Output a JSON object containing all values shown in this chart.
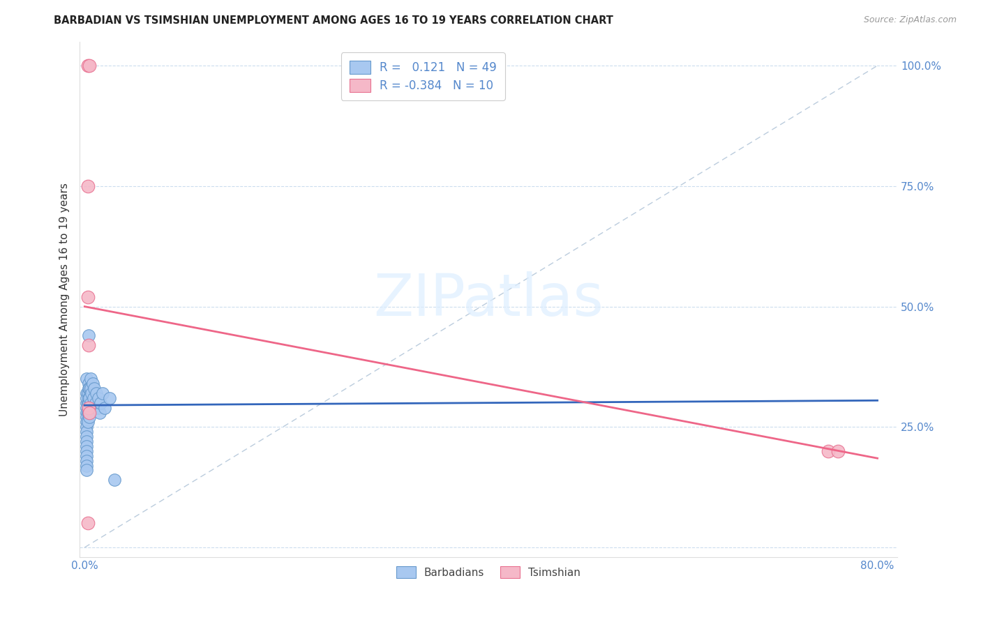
{
  "title": "BARBADIAN VS TSIMSHIAN UNEMPLOYMENT AMONG AGES 16 TO 19 YEARS CORRELATION CHART",
  "source": "Source: ZipAtlas.com",
  "ylabel": "Unemployment Among Ages 16 to 19 years",
  "xlim": [
    -0.005,
    0.82
  ],
  "ylim": [
    -0.02,
    1.05
  ],
  "xticks": [
    0.0,
    0.1,
    0.2,
    0.3,
    0.4,
    0.5,
    0.6,
    0.7,
    0.8
  ],
  "xticklabels": [
    "0.0%",
    "",
    "",
    "",
    "",
    "",
    "",
    "",
    "80.0%"
  ],
  "yticks": [
    0.0,
    0.25,
    0.5,
    0.75,
    1.0
  ],
  "yticklabels": [
    "",
    "25.0%",
    "50.0%",
    "75.0%",
    "100.0%"
  ],
  "blue_R": 0.121,
  "blue_N": 49,
  "pink_R": -0.384,
  "pink_N": 10,
  "blue_color": "#a8c8f0",
  "blue_edge_color": "#6699cc",
  "pink_color": "#f5b8c8",
  "pink_edge_color": "#e87090",
  "blue_line_color": "#3366bb",
  "pink_line_color": "#ee6688",
  "ref_line_color": "#bbccdd",
  "legend_text_color": "#5588cc",
  "tick_color": "#5588cc",
  "watermark_color": "#ddeeff",
  "blue_scatter_x": [
    0.002,
    0.004,
    0.002,
    0.002,
    0.002,
    0.002,
    0.002,
    0.002,
    0.002,
    0.002,
    0.002,
    0.002,
    0.002,
    0.002,
    0.002,
    0.002,
    0.002,
    0.002,
    0.002,
    0.003,
    0.003,
    0.003,
    0.003,
    0.004,
    0.004,
    0.004,
    0.004,
    0.004,
    0.005,
    0.005,
    0.005,
    0.005,
    0.006,
    0.006,
    0.006,
    0.007,
    0.008,
    0.009,
    0.01,
    0.011,
    0.012,
    0.013,
    0.014,
    0.015,
    0.016,
    0.018,
    0.02,
    0.025,
    0.03
  ],
  "blue_scatter_y": [
    0.3,
    0.44,
    0.35,
    0.32,
    0.31,
    0.29,
    0.28,
    0.27,
    0.26,
    0.25,
    0.24,
    0.23,
    0.22,
    0.21,
    0.2,
    0.19,
    0.18,
    0.17,
    0.16,
    0.32,
    0.3,
    0.28,
    0.26,
    0.34,
    0.33,
    0.31,
    0.3,
    0.28,
    0.33,
    0.31,
    0.29,
    0.27,
    0.35,
    0.33,
    0.3,
    0.32,
    0.34,
    0.31,
    0.33,
    0.3,
    0.32,
    0.29,
    0.31,
    0.28,
    0.3,
    0.32,
    0.29,
    0.31,
    0.14
  ],
  "pink_scatter_x": [
    0.003,
    0.005,
    0.003,
    0.003,
    0.004,
    0.003,
    0.004,
    0.005,
    0.75,
    0.76
  ],
  "pink_scatter_y": [
    1.0,
    1.0,
    0.75,
    0.52,
    0.42,
    0.05,
    0.29,
    0.28,
    0.2,
    0.2
  ],
  "blue_trend_x": [
    0.0,
    0.8
  ],
  "blue_trend_y": [
    0.295,
    0.305
  ],
  "pink_trend_x": [
    0.0,
    0.8
  ],
  "pink_trend_y": [
    0.5,
    0.185
  ]
}
